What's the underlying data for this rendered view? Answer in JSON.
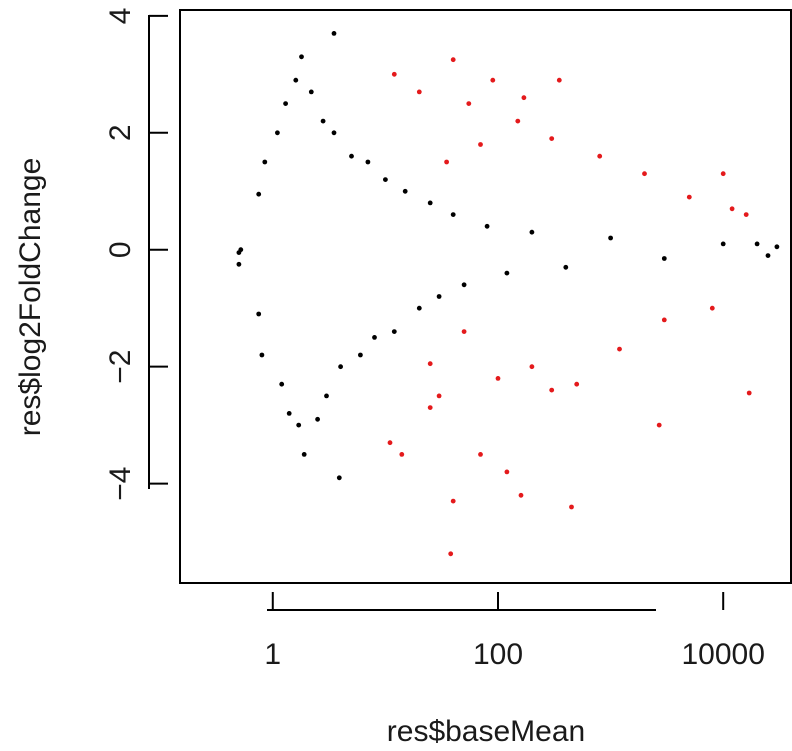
{
  "chart_data": {
    "type": "scatter",
    "title": "",
    "xlabel": "res$baseMean",
    "ylabel": "res$log2FoldChange",
    "x_scale": "log10",
    "xlim": [
      0.15,
      40000
    ],
    "ylim": [
      -5.7,
      4.1
    ],
    "x_ticks": [
      {
        "value": 1,
        "label": "1"
      },
      {
        "value": 100,
        "label": "100"
      },
      {
        "value": 10000,
        "label": "10000"
      }
    ],
    "y_ticks": [
      {
        "value": -4,
        "label": "−4"
      },
      {
        "value": -2,
        "label": "−2"
      },
      {
        "value": 0,
        "label": "0"
      },
      {
        "value": 2,
        "label": "2"
      },
      {
        "value": 4,
        "label": "4"
      }
    ],
    "grid": false,
    "legend": "none",
    "colors": {
      "not_significant": "#000000",
      "significant": "#e41a1c"
    },
    "series": [
      {
        "color": "#000000",
        "values": [
          [
            0.5,
            -0.05
          ],
          [
            0.5,
            -0.25
          ],
          [
            0.52,
            0.0
          ],
          [
            0.75,
            0.95
          ],
          [
            0.75,
            -1.1
          ],
          [
            0.8,
            -1.8
          ],
          [
            0.85,
            1.5
          ],
          [
            1.1,
            2.0
          ],
          [
            1.2,
            -2.3
          ],
          [
            1.3,
            2.5
          ],
          [
            1.4,
            -2.8
          ],
          [
            1.6,
            2.9
          ],
          [
            1.7,
            -3.0
          ],
          [
            1.8,
            3.3
          ],
          [
            1.9,
            -3.5
          ],
          [
            2.2,
            2.7
          ],
          [
            2.5,
            -2.9
          ],
          [
            2.8,
            2.2
          ],
          [
            3.0,
            -2.5
          ],
          [
            3.5,
            3.7
          ],
          [
            3.9,
            -3.9
          ],
          [
            3.5,
            2.0
          ],
          [
            4.0,
            -2.0
          ],
          [
            5,
            1.6
          ],
          [
            6,
            -1.8
          ],
          [
            7,
            1.5
          ],
          [
            8,
            -1.5
          ],
          [
            10,
            1.2
          ],
          [
            12,
            -1.4
          ],
          [
            15,
            1.0
          ],
          [
            20,
            -1.0
          ],
          [
            25,
            0.8
          ],
          [
            30,
            -0.8
          ],
          [
            40,
            0.6
          ],
          [
            50,
            -0.6
          ],
          [
            80,
            0.4
          ],
          [
            120,
            -0.4
          ],
          [
            200,
            0.3
          ],
          [
            400,
            -0.3
          ],
          [
            1000,
            0.2
          ],
          [
            3000,
            -0.15
          ],
          [
            10000,
            0.1
          ],
          [
            20000,
            0.1
          ],
          [
            25000,
            -0.1
          ],
          [
            30000,
            0.05
          ]
        ]
      },
      {
        "color": "#e41a1c",
        "values": [
          [
            12,
            3.0
          ],
          [
            40,
            3.25
          ],
          [
            90,
            2.9
          ],
          [
            350,
            2.9
          ],
          [
            170,
            2.6
          ],
          [
            20,
            2.7
          ],
          [
            55,
            2.5
          ],
          [
            25,
            -1.95
          ],
          [
            30,
            -2.5
          ],
          [
            35,
            1.5
          ],
          [
            50,
            -1.4
          ],
          [
            70,
            1.8
          ],
          [
            100,
            -2.2
          ],
          [
            150,
            2.2
          ],
          [
            200,
            -2.0
          ],
          [
            300,
            1.9
          ],
          [
            500,
            -2.3
          ],
          [
            800,
            1.6
          ],
          [
            1200,
            -1.7
          ],
          [
            2000,
            1.3
          ],
          [
            3000,
            -1.2
          ],
          [
            5000,
            0.9
          ],
          [
            8000,
            -1.0
          ],
          [
            12000,
            0.7
          ],
          [
            16000,
            0.6
          ],
          [
            10000,
            1.3
          ],
          [
            17000,
            -2.45
          ],
          [
            2700,
            -3.0
          ],
          [
            450,
            -4.4
          ],
          [
            70,
            -3.5
          ],
          [
            160,
            -4.2
          ],
          [
            40,
            -4.3
          ],
          [
            38,
            -5.2
          ],
          [
            11,
            -3.3
          ],
          [
            14,
            -3.5
          ],
          [
            25,
            -2.7
          ],
          [
            120,
            -3.8
          ],
          [
            300,
            -2.4
          ]
        ]
      }
    ]
  }
}
